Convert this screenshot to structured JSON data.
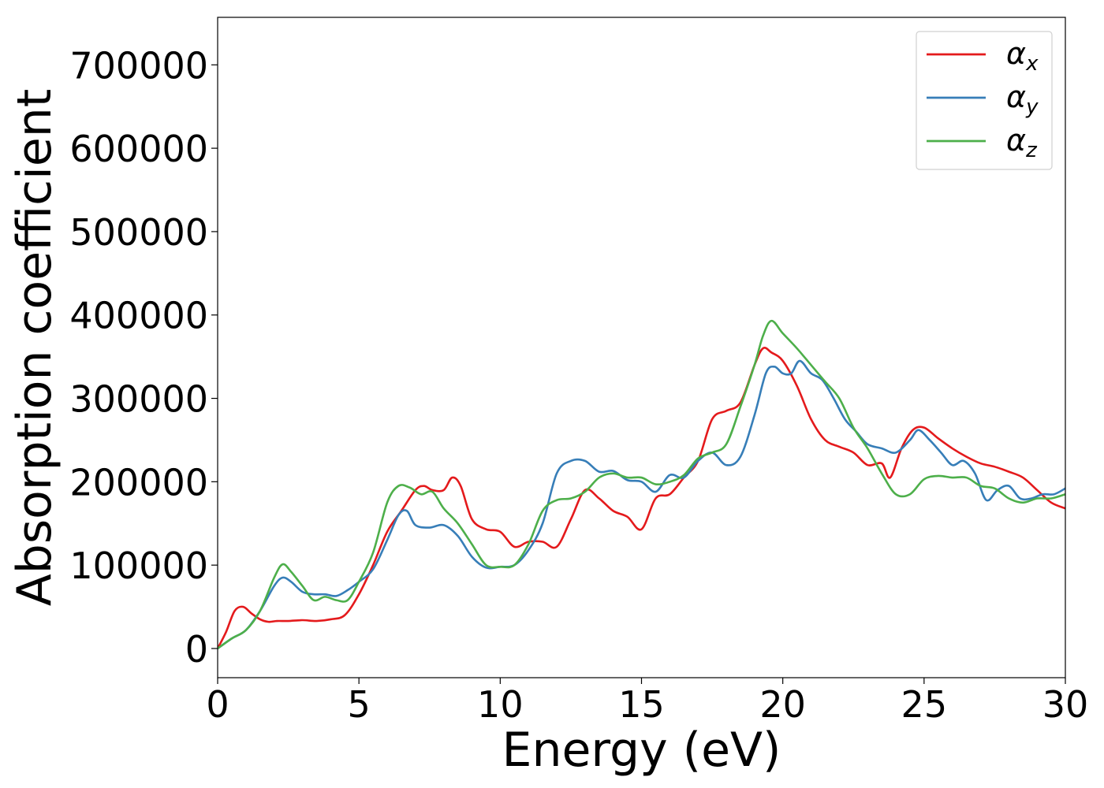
{
  "chart_data": {
    "type": "line",
    "xlabel": "Energy (eV)",
    "ylabel": "Absorption coefficient",
    "xlim": [
      0,
      30
    ],
    "ylim": [
      -35000,
      757000
    ],
    "xticks": [
      0,
      5,
      10,
      15,
      20,
      25,
      30
    ],
    "xtick_labels": [
      "0",
      "5",
      "10",
      "15",
      "20",
      "25",
      "30"
    ],
    "yticks": [
      0,
      100000,
      200000,
      300000,
      400000,
      500000,
      600000,
      700000
    ],
    "ytick_labels": [
      "0",
      "100000",
      "200000",
      "300000",
      "400000",
      "500000",
      "600000",
      "700000"
    ],
    "grid": false,
    "legend_position": "top-right",
    "series": [
      {
        "name": "α_x",
        "label_main": "α",
        "label_sub": "x",
        "color": "#e41a1c",
        "x": [
          0,
          0.3,
          0.6,
          0.9,
          1.2,
          1.5,
          1.8,
          2.1,
          2.5,
          3.0,
          3.5,
          4.0,
          4.5,
          5.0,
          5.5,
          6.0,
          6.5,
          7.0,
          7.3,
          7.6,
          8.0,
          8.3,
          8.6,
          9.0,
          9.5,
          10.0,
          10.5,
          11.0,
          11.5,
          12.0,
          12.5,
          13.0,
          13.5,
          14.0,
          14.5,
          15.0,
          15.5,
          16.0,
          16.5,
          17.0,
          17.5,
          18.0,
          18.5,
          19.0,
          19.3,
          19.6,
          20.0,
          20.5,
          21.0,
          21.5,
          22.0,
          22.5,
          23.0,
          23.5,
          23.8,
          24.2,
          24.6,
          25.0,
          25.5,
          26.0,
          26.5,
          27.0,
          27.5,
          28.0,
          28.5,
          29.0,
          29.5,
          30.0
        ],
        "y": [
          0,
          20000,
          45000,
          50000,
          42000,
          35000,
          32000,
          33000,
          33000,
          34000,
          33000,
          35000,
          40000,
          65000,
          100000,
          140000,
          165000,
          190000,
          195000,
          190000,
          190000,
          205000,
          195000,
          155000,
          143000,
          140000,
          122000,
          128000,
          128000,
          122000,
          155000,
          190000,
          180000,
          165000,
          158000,
          143000,
          180000,
          185000,
          205000,
          225000,
          275000,
          285000,
          295000,
          340000,
          360000,
          355000,
          345000,
          315000,
          275000,
          250000,
          242000,
          235000,
          220000,
          222000,
          205000,
          240000,
          262000,
          265000,
          252000,
          240000,
          230000,
          222000,
          218000,
          212000,
          205000,
          190000,
          175000,
          168000
        ]
      },
      {
        "name": "α_y",
        "label_main": "α",
        "label_sub": "y",
        "color": "#377eb8",
        "x": [
          0,
          0.5,
          1.0,
          1.5,
          2.0,
          2.3,
          2.6,
          3.0,
          3.4,
          3.8,
          4.2,
          4.6,
          5.0,
          5.5,
          6.0,
          6.4,
          6.7,
          7.0,
          7.5,
          8.0,
          8.5,
          9.0,
          9.5,
          10.0,
          10.5,
          11.0,
          11.5,
          12.0,
          12.5,
          13.0,
          13.5,
          14.0,
          14.5,
          15.0,
          15.5,
          16.0,
          16.5,
          17.0,
          17.5,
          18.0,
          18.5,
          19.0,
          19.4,
          19.7,
          20.0,
          20.3,
          20.6,
          21.0,
          21.4,
          21.8,
          22.2,
          22.6,
          23.0,
          23.5,
          24.0,
          24.5,
          24.8,
          25.2,
          25.6,
          26.0,
          26.4,
          26.8,
          27.2,
          27.6,
          28.0,
          28.4,
          28.8,
          29.2,
          29.6,
          30.0
        ],
        "y": [
          0,
          12000,
          22000,
          45000,
          75000,
          85000,
          80000,
          68000,
          65000,
          65000,
          63000,
          70000,
          80000,
          95000,
          130000,
          160000,
          165000,
          148000,
          145000,
          148000,
          135000,
          110000,
          97000,
          98000,
          100000,
          118000,
          150000,
          210000,
          225000,
          225000,
          212000,
          213000,
          202000,
          200000,
          188000,
          208000,
          205000,
          225000,
          235000,
          220000,
          230000,
          280000,
          330000,
          338000,
          330000,
          330000,
          345000,
          330000,
          322000,
          300000,
          275000,
          260000,
          245000,
          240000,
          235000,
          250000,
          262000,
          250000,
          235000,
          220000,
          225000,
          210000,
          178000,
          190000,
          195000,
          180000,
          180000,
          185000,
          185000,
          192000
        ]
      },
      {
        "name": "α_z",
        "label_main": "α",
        "label_sub": "z",
        "color": "#4daf4a",
        "x": [
          0,
          0.5,
          1.0,
          1.5,
          2.0,
          2.3,
          2.6,
          3.0,
          3.4,
          3.8,
          4.2,
          4.6,
          5.0,
          5.5,
          6.0,
          6.4,
          6.8,
          7.2,
          7.6,
          8.0,
          8.5,
          9.0,
          9.5,
          10.0,
          10.5,
          11.0,
          11.5,
          12.0,
          12.5,
          13.0,
          13.5,
          14.0,
          14.5,
          15.0,
          15.5,
          16.0,
          16.5,
          17.0,
          17.5,
          18.0,
          18.5,
          19.0,
          19.3,
          19.6,
          20.0,
          20.5,
          21.0,
          21.5,
          22.0,
          22.5,
          23.0,
          23.5,
          24.0,
          24.5,
          25.0,
          25.5,
          26.0,
          26.5,
          27.0,
          27.5,
          28.0,
          28.5,
          29.0,
          29.5,
          30.0
        ],
        "y": [
          0,
          12000,
          22000,
          45000,
          85000,
          101000,
          92000,
          75000,
          58000,
          62000,
          58000,
          58000,
          80000,
          115000,
          175000,
          195000,
          193000,
          185000,
          188000,
          168000,
          150000,
          125000,
          100000,
          98000,
          100000,
          125000,
          165000,
          178000,
          180000,
          188000,
          205000,
          210000,
          205000,
          205000,
          197000,
          200000,
          208000,
          228000,
          235000,
          245000,
          290000,
          340000,
          375000,
          393000,
          378000,
          360000,
          340000,
          320000,
          300000,
          265000,
          240000,
          210000,
          185000,
          185000,
          203000,
          207000,
          205000,
          205000,
          195000,
          192000,
          180000,
          175000,
          180000,
          180000,
          185000
        ]
      }
    ]
  }
}
